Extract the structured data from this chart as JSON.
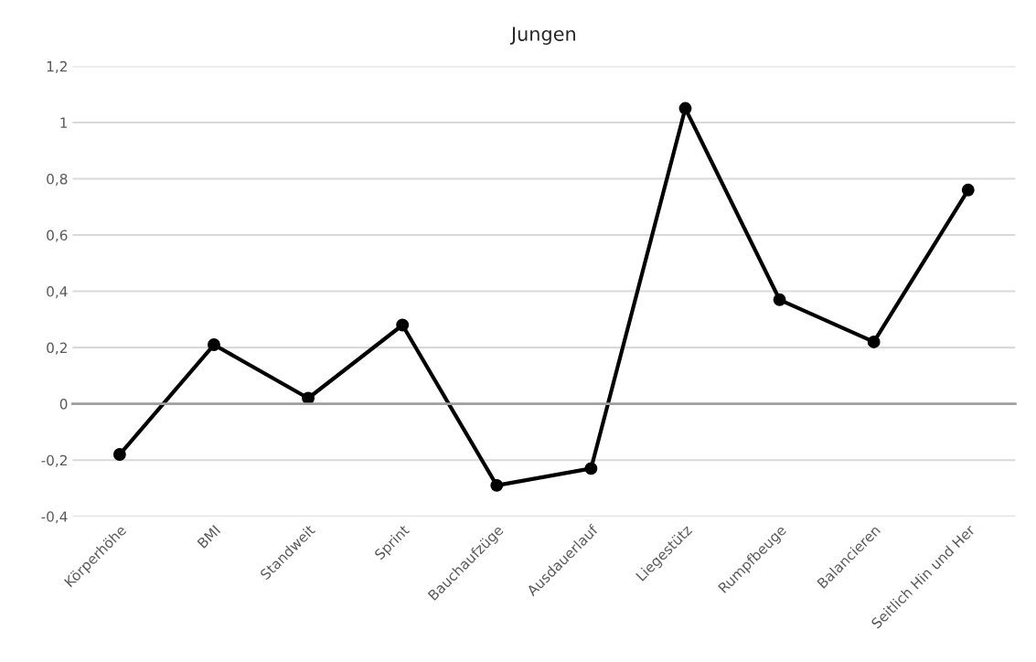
{
  "chart_data": {
    "type": "line",
    "title": "Jungen",
    "categories": [
      "Körperhöhe",
      "BMI",
      "Standweit",
      "Sprint",
      "Bauchaufzüge",
      "Ausdauerlauf",
      "Liegestütz",
      "Rumpfbeuge",
      "Balancieren",
      "Seitlich Hin und Her"
    ],
    "series": [
      {
        "color": "#000000",
        "values": [
          -0.18,
          0.21,
          0.02,
          0.28,
          -0.29,
          -0.23,
          1.05,
          0.37,
          0.22,
          0.76
        ]
      }
    ],
    "ylim": [
      -0.4,
      1.2
    ],
    "yticks": [
      {
        "value": -0.4,
        "label": "-0,4"
      },
      {
        "value": -0.2,
        "label": "-0,2"
      },
      0,
      {
        "value": 0.2,
        "label": "0,2"
      },
      {
        "value": 0.4,
        "label": "0,4"
      },
      {
        "value": 0.6,
        "label": "0,6"
      },
      {
        "value": 0.8,
        "label": "0,8"
      },
      1,
      {
        "value": 1.2,
        "label": "1,2"
      }
    ],
    "grid": "y",
    "marker": "circle",
    "line_style": "solid"
  }
}
